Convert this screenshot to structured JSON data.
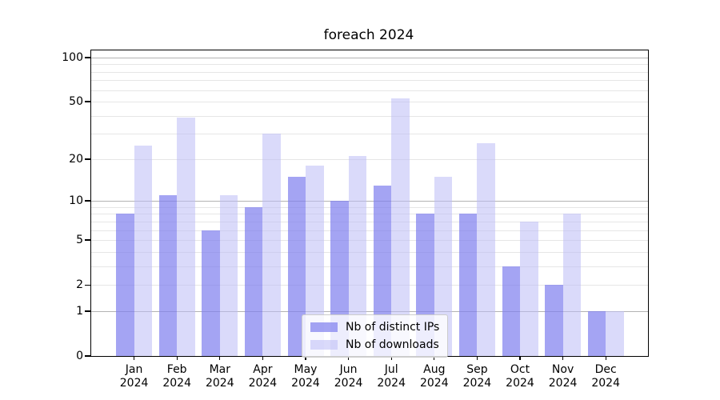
{
  "chart_data": {
    "type": "bar",
    "title": "foreach 2024",
    "categories": [
      "Jan\n2024",
      "Feb\n2024",
      "Mar\n2024",
      "Apr\n2024",
      "May\n2024",
      "Jun\n2024",
      "Jul\n2024",
      "Aug\n2024",
      "Sep\n2024",
      "Oct\n2024",
      "Nov\n2024",
      "Dec\n2024"
    ],
    "series": [
      {
        "name": "Nb of distinct IPs",
        "color": "#8181ee",
        "alpha": 0.72,
        "values": [
          8,
          11,
          6,
          9,
          15,
          10,
          13,
          8,
          8,
          3,
          2,
          1
        ]
      },
      {
        "name": "Nb of downloads",
        "color": "#bcbcf6",
        "alpha": 0.55,
        "values": [
          25,
          39,
          11,
          30,
          18,
          21,
          53,
          15,
          26,
          7,
          8,
          1
        ]
      }
    ],
    "xlabel": "",
    "ylabel": "",
    "yscale": "log10(1+y)",
    "ylim": [
      0,
      111
    ],
    "yticks": [
      0,
      1,
      2,
      5,
      10,
      20,
      50,
      100
    ],
    "ytick_labels": [
      "0",
      "1",
      "2",
      "5",
      "10",
      "20",
      "50",
      "100"
    ],
    "major_gridlines": [
      1,
      10,
      100
    ],
    "minor_gridlines": [
      2,
      3,
      4,
      5,
      6,
      7,
      8,
      9,
      20,
      30,
      40,
      50,
      60,
      70,
      80,
      90
    ],
    "grid": true,
    "legend": {
      "position": "lower center",
      "items": [
        "Nb of distinct IPs",
        "Nb of downloads"
      ]
    }
  }
}
